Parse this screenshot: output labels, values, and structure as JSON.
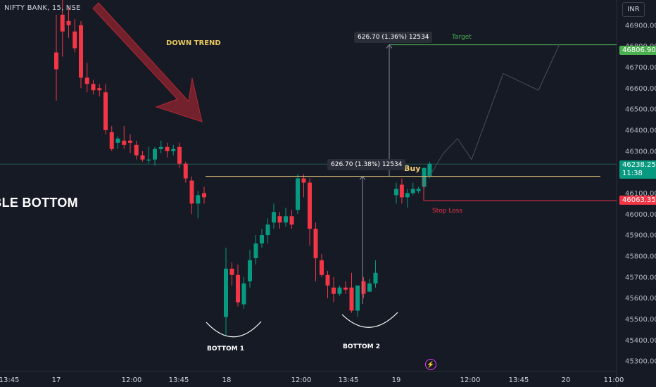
{
  "header": {
    "symbol": "NIFTY BANK, 15, NSE",
    "currency": "INR"
  },
  "annotations": {
    "pattern_title": "UBLE BOTTOM",
    "down_trend": "DOWN TREND",
    "target": "Target",
    "stop_loss": "Stop Loss",
    "buy": "Buy",
    "bottom1": "BOTTOM 1",
    "bottom2": "BOTTOM 2",
    "measure_top": "626.70 (1.36%) 12534",
    "measure_bottom": "626.70 (1.38%) 12534"
  },
  "price_tags": {
    "target": "46806.90",
    "current": "46238.25",
    "countdown": "11:38",
    "stop": "46063.35"
  },
  "colors": {
    "up": "#089981",
    "down": "#f23645",
    "target": "#4caf50",
    "neckline": "#f3d179",
    "arrow": "#b22833"
  },
  "icons": {
    "replay": "lightning-icon"
  },
  "chart_data": {
    "type": "candlestick",
    "title": "NIFTY BANK, 15, NSE",
    "ylim": [
      45250,
      47020
    ],
    "y_ticks": [
      45300,
      45400,
      45500,
      45600,
      45700,
      45800,
      45900,
      46000,
      46100,
      46200,
      46300,
      46400,
      46500,
      46600,
      46700,
      46800,
      46900
    ],
    "x_ticks": [
      "13:45",
      "17",
      "12:00",
      "13:45",
      "18",
      "12:00",
      "13:45",
      "19",
      "12:00",
      "13:45",
      "20",
      "11:00"
    ],
    "candles": [
      [
        46770,
        46950,
        46540,
        46690
      ],
      [
        46950,
        47050,
        46750,
        46870
      ],
      [
        46920,
        46990,
        46840,
        46900
      ],
      [
        46870,
        46930,
        46770,
        46790
      ],
      [
        46900,
        46920,
        46600,
        46650
      ],
      [
        46650,
        46720,
        46580,
        46620
      ],
      [
        46620,
        46640,
        46570,
        46590
      ],
      [
        46600,
        46620,
        46560,
        46590
      ],
      [
        46580,
        46620,
        46380,
        46400
      ],
      [
        46390,
        46420,
        46300,
        46310
      ],
      [
        46340,
        46370,
        46310,
        46360
      ],
      [
        46350,
        46420,
        46310,
        46330
      ],
      [
        46350,
        46380,
        46290,
        46340
      ],
      [
        46330,
        46350,
        46260,
        46280
      ],
      [
        46280,
        46300,
        46250,
        46260
      ],
      [
        46260,
        46320,
        46240,
        46260
      ],
      [
        46260,
        46320,
        46230,
        46310
      ],
      [
        46310,
        46350,
        46290,
        46320
      ],
      [
        46320,
        46340,
        46270,
        46300
      ],
      [
        46300,
        46330,
        46280,
        46310
      ],
      [
        46320,
        46340,
        46220,
        46240
      ],
      [
        46240,
        46250,
        46150,
        46170
      ],
      [
        46160,
        46180,
        46000,
        46050
      ],
      [
        46050,
        46110,
        45980,
        46090
      ],
      [
        46100,
        46130,
        46050,
        46080
      ],
      [
        45510,
        45840,
        45420,
        45740
      ],
      [
        45740,
        45770,
        45660,
        45710
      ],
      [
        45710,
        45760,
        45560,
        45580
      ],
      [
        45570,
        45700,
        45550,
        45670
      ],
      [
        45680,
        45830,
        45650,
        45780
      ],
      [
        45790,
        45900,
        45760,
        45860
      ],
      [
        45860,
        45930,
        45840,
        45900
      ],
      [
        45900,
        45980,
        45860,
        45950
      ],
      [
        45960,
        46050,
        45930,
        46010
      ],
      [
        45990,
        46010,
        45930,
        45960
      ],
      [
        45960,
        46030,
        45940,
        45990
      ],
      [
        45990,
        46020,
        45930,
        45950
      ],
      [
        46020,
        46190,
        46000,
        46170
      ],
      [
        46170,
        46190,
        46080,
        46150
      ],
      [
        46150,
        46170,
        45850,
        45930
      ],
      [
        45930,
        45960,
        45680,
        45790
      ],
      [
        45780,
        45810,
        45700,
        45710
      ],
      [
        45710,
        45730,
        45600,
        45660
      ],
      [
        45650,
        45700,
        45580,
        45620
      ],
      [
        45620,
        45660,
        45610,
        45650
      ],
      [
        45650,
        45680,
        45620,
        45640
      ],
      [
        45650,
        45720,
        45530,
        45540
      ],
      [
        45540,
        45650,
        45510,
        45660
      ],
      [
        45680,
        45700,
        45600,
        45620
      ],
      [
        45630,
        45690,
        45630,
        45670
      ],
      [
        45670,
        45780,
        45650,
        45720
      ],
      [
        46090,
        46150,
        46050,
        46120
      ],
      [
        46140,
        46170,
        46050,
        46080
      ],
      [
        46080,
        46120,
        46030,
        46100
      ],
      [
        46100,
        46150,
        46090,
        46120
      ],
      [
        46110,
        46130,
        46100,
        46120
      ],
      [
        46130,
        46220,
        46120,
        46220
      ],
      [
        46180,
        46250,
        46170,
        46240
      ]
    ],
    "levels": {
      "target": 46806.9,
      "current": 46238.25,
      "stop_loss": 46063.35,
      "neckline": 46180
    },
    "projection": [
      46180,
      46290,
      46360,
      46260,
      46670,
      46590,
      46810
    ]
  }
}
